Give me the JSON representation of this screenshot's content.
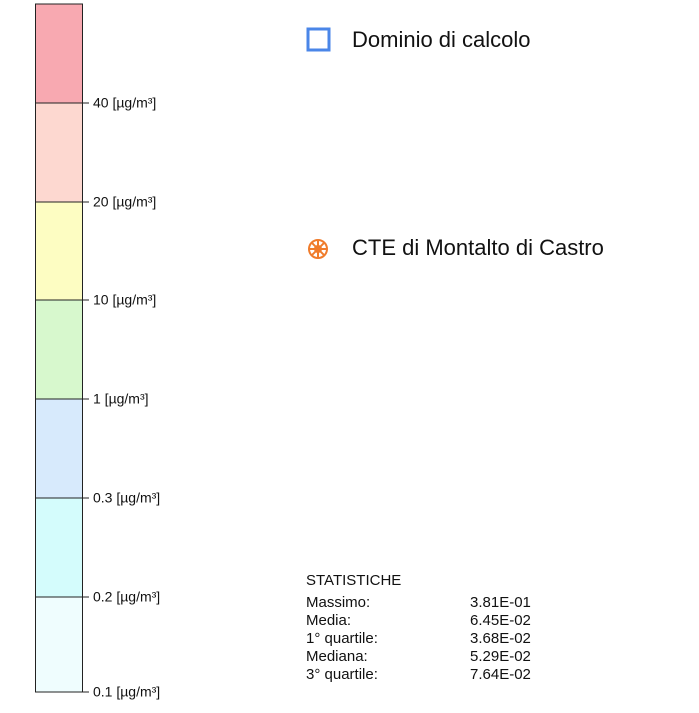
{
  "scale": {
    "labels": [
      "40 [µg/m³]",
      "20 [µg/m³]",
      "10 [µg/m³]",
      "1 [µg/m³]",
      "0.3 [µg/m³]",
      "0.2 [µg/m³]",
      "0.1 [µg/m³]"
    ]
  },
  "legend": {
    "items": [
      "Dominio di calcolo",
      "CTE di Montalto di Castro"
    ]
  },
  "statistics": {
    "title": "STATISTICHE",
    "rows": [
      [
        "Massimo:",
        "3.81E-01"
      ],
      [
        "Media:",
        "6.45E-02"
      ],
      [
        "1° quartile:",
        "3.68E-02"
      ],
      [
        "Mediana:",
        "5.29E-02"
      ],
      [
        "3° quartile:",
        "7.64E-02"
      ]
    ]
  }
}
